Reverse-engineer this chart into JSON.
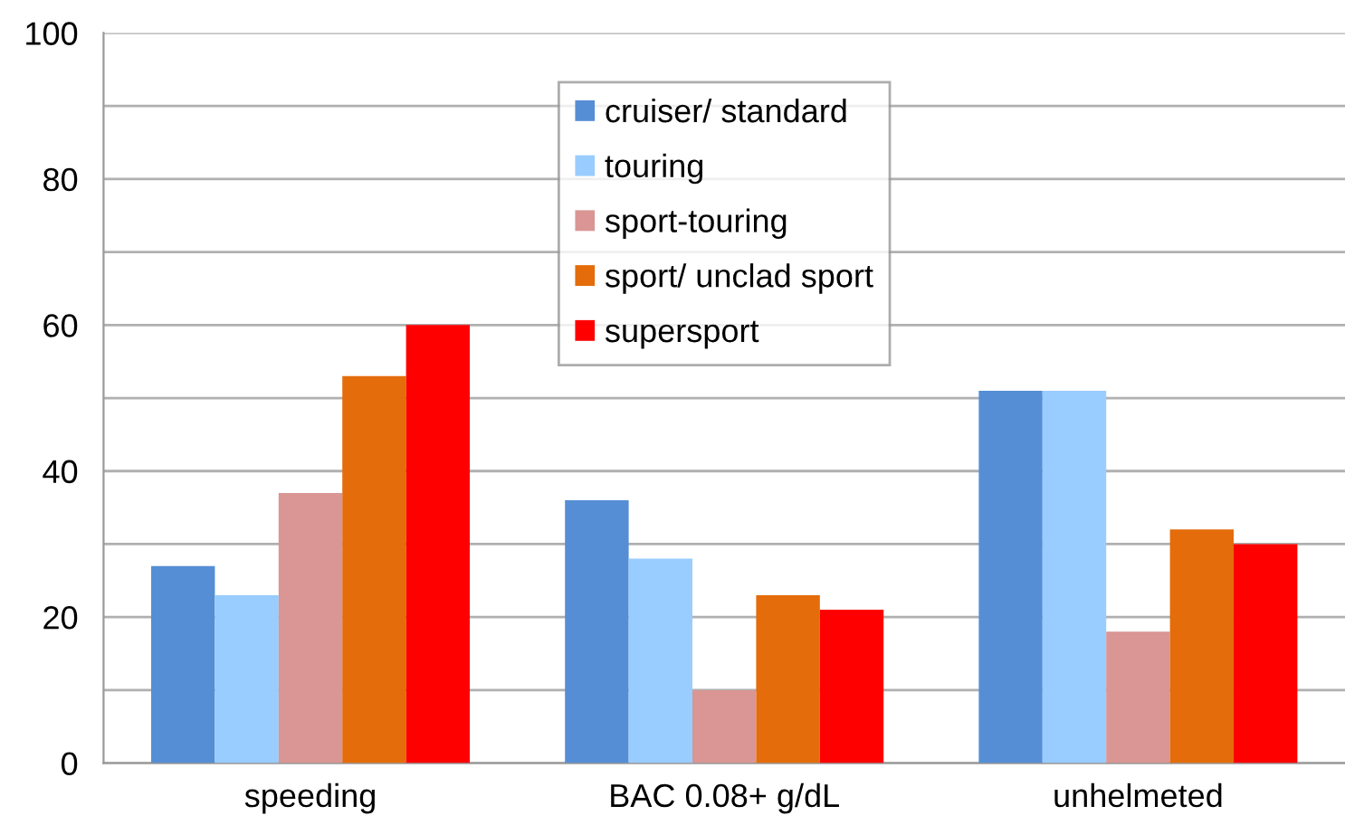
{
  "chart_data": {
    "type": "bar",
    "categories": [
      "speeding",
      "BAC 0.08+ g/dL",
      "unhelmeted"
    ],
    "series": [
      {
        "name": "cruiser/ standard",
        "color": "#558ed5",
        "values": [
          27,
          36,
          51
        ]
      },
      {
        "name": "touring",
        "color": "#99ccff",
        "values": [
          23,
          28,
          51
        ]
      },
      {
        "name": "sport-touring",
        "color": "#d99694",
        "values": [
          37,
          10,
          18
        ]
      },
      {
        "name": "sport/ unclad sport",
        "color": "#e46c0a",
        "values": [
          53,
          23,
          32
        ]
      },
      {
        "name": "supersport",
        "color": "#ff0000",
        "values": [
          60,
          21,
          30
        ]
      }
    ],
    "ylim": [
      0,
      100
    ],
    "yticks": [
      0,
      {
        "value": 10,
        "label": null
      },
      20,
      {
        "value": 30,
        "label": null
      },
      40,
      {
        "value": 50,
        "label": null
      },
      60,
      {
        "value": 70,
        "label": null
      },
      80,
      {
        "value": 90,
        "label": null
      },
      100
    ],
    "grid": "y",
    "legend": "top"
  }
}
